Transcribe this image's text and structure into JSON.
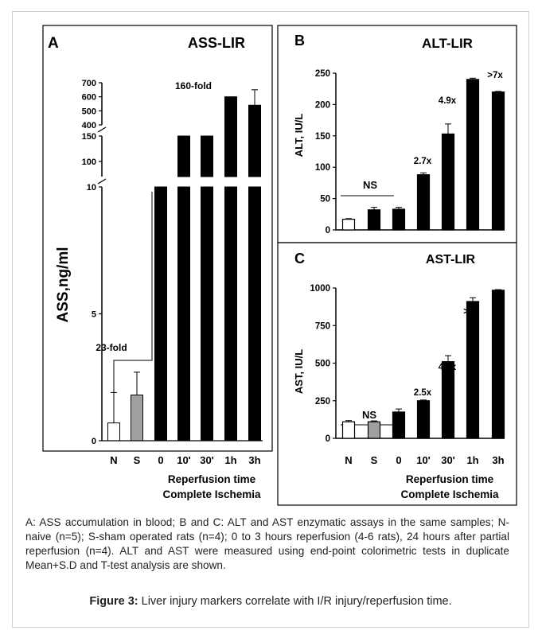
{
  "chart_data": [
    {
      "panel": "A",
      "type": "bar",
      "title": "ASS-LIR",
      "ylabel": "ASS,ng/ml",
      "xlabel": [
        "Reperfusion time",
        "Complete Ischemia"
      ],
      "categories": [
        "N",
        "S",
        "0",
        "10'",
        "30'",
        "1h",
        "3h"
      ],
      "values": [
        0.7,
        1.8,
        10,
        150,
        150,
        600,
        540
      ],
      "errors": [
        1.2,
        0.9,
        0.8,
        null,
        140,
        null,
        110
      ],
      "bar_fill": [
        "#ffffff",
        "#a0a0a0",
        "#000000",
        "#000000",
        "#000000",
        "#000000",
        "#000000"
      ],
      "y_axis_broken": true,
      "yticks": [
        "0",
        "5",
        "10",
        "100",
        "150",
        "400",
        "500",
        "600",
        "700"
      ],
      "annotations": [
        "23-fold",
        "160-fold"
      ]
    },
    {
      "panel": "B",
      "type": "bar",
      "title": "ALT-LIR",
      "ylabel": "ALT, IU/L",
      "categories": [
        "N",
        "S",
        "0",
        "10'",
        "30'",
        "1h",
        "3h"
      ],
      "values": [
        17,
        32,
        33,
        88,
        153,
        240,
        220
      ],
      "errors": [
        1,
        4,
        3,
        3,
        16,
        2,
        1
      ],
      "bar_fill": [
        "#ffffff",
        "#000000",
        "#000000",
        "#000000",
        "#000000",
        "#000000",
        "#000000"
      ],
      "ylim": [
        0,
        250
      ],
      "yticks": [
        0,
        50,
        100,
        150,
        200,
        250
      ],
      "annotations": [
        "NS",
        "2.7x",
        "4.9x",
        ">7x"
      ]
    },
    {
      "panel": "C",
      "type": "bar",
      "title": "AST-LIR",
      "ylabel": "AST, IU/L",
      "xlabel": [
        "Reperfusion time",
        "Complete Ischemia"
      ],
      "categories": [
        "N",
        "S",
        "0",
        "10'",
        "30'",
        "1h",
        "3h"
      ],
      "values": [
        110,
        110,
        175,
        250,
        510,
        910,
        985
      ],
      "errors": [
        8,
        6,
        20,
        5,
        40,
        25,
        4
      ],
      "bar_fill": [
        "#ffffff",
        "#a0a0a0",
        "#000000",
        "#000000",
        "#000000",
        "#000000",
        "#000000"
      ],
      "ylim": [
        0,
        1000
      ],
      "yticks": [
        0,
        250,
        500,
        750,
        1000
      ],
      "annotations": [
        "NS",
        "2.5x",
        "4.6x",
        ">8x"
      ]
    }
  ],
  "caption": {
    "legend": "A: ASS accumulation in blood; B and C: ALT and AST enzymatic assays in the same samples; N-naive (n=5); S-sham operated rats (n=4); 0 to 3 hours reperfusion (4-6 rats), 24 hours after partial reperfusion (n=4). ALT and AST were measured using end-point colorimetric tests in duplicate Mean+S.D and T-test analysis are shown.",
    "figure_label": "Figure 3:",
    "figure_title": "Liver injury markers correlate with I/R injury/reperfusion time."
  }
}
